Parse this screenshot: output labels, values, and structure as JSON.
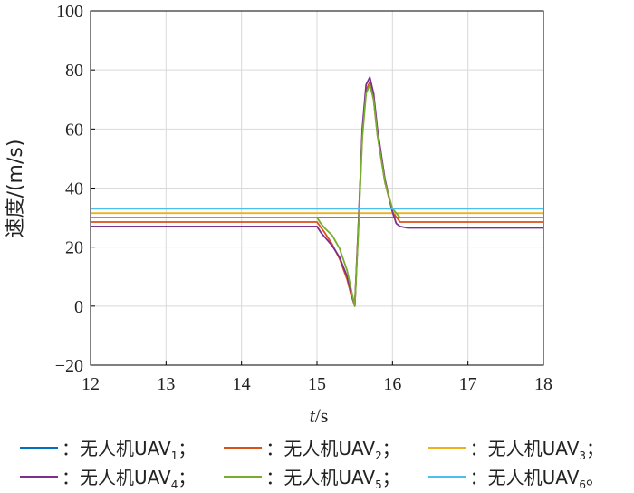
{
  "chart_data": {
    "type": "line",
    "xlabel_var": "t",
    "xlabel_unit": "/s",
    "ylabel": "速度/(m/s)",
    "xlim": [
      12,
      18
    ],
    "ylim": [
      -20,
      100
    ],
    "xticks": [
      "12",
      "13",
      "14",
      "15",
      "16",
      "17",
      "18"
    ],
    "yticks": [
      "−20",
      "0",
      "20",
      "40",
      "60",
      "80",
      "100"
    ],
    "grid": true,
    "legend_position": "bottom",
    "series": [
      {
        "name": "无人机UAV",
        "sub": "1",
        "suffix": "；",
        "color": "#0072BD",
        "x": [
          12,
          15.5,
          15.5,
          18
        ],
        "y": [
          30,
          30,
          30,
          30
        ]
      },
      {
        "name": "无人机UAV",
        "sub": "2",
        "suffix": "；",
        "color": "#D95319",
        "x": [
          12,
          15.0,
          15.1,
          15.2,
          15.3,
          15.4,
          15.45,
          15.5,
          15.55,
          15.6,
          15.65,
          15.7,
          15.75,
          15.8,
          15.9,
          16.0,
          16.1,
          16.2,
          16.3,
          18
        ],
        "y": [
          28.5,
          28.5,
          25,
          21,
          16,
          9,
          4,
          0,
          28,
          58,
          73,
          76,
          70,
          58,
          42,
          32,
          28.5,
          28.5,
          28.5,
          28.5
        ]
      },
      {
        "name": "无人机UAV",
        "sub": "3",
        "suffix": "；",
        "color": "#EDB120",
        "x": [
          12,
          15.5,
          15.6,
          15.7,
          15.8,
          16.0,
          18
        ],
        "y": [
          31.5,
          31.5,
          31.5,
          31.5,
          31.5,
          31.5,
          31.5
        ]
      },
      {
        "name": "无人机UAV",
        "sub": "4",
        "suffix": "；",
        "color": "#7E2F8E",
        "x": [
          12,
          15.0,
          15.05,
          15.1,
          15.2,
          15.3,
          15.4,
          15.45,
          15.5,
          15.55,
          15.6,
          15.65,
          15.7,
          15.75,
          15.8,
          15.9,
          16.0,
          16.05,
          16.1,
          16.2,
          16.3,
          18
        ],
        "y": [
          27,
          27,
          25,
          23.5,
          20.5,
          16.5,
          10,
          5,
          0,
          28,
          60,
          75,
          77.5,
          72,
          60,
          43,
          32,
          28,
          27,
          26.5,
          26.5,
          26.5
        ]
      },
      {
        "name": "无人机UAV",
        "sub": "5",
        "suffix": "；",
        "color": "#77AC30",
        "x": [
          12,
          15.0,
          15.05,
          15.1,
          15.2,
          15.3,
          15.4,
          15.45,
          15.5,
          15.55,
          15.6,
          15.65,
          15.7,
          15.75,
          15.8,
          15.9,
          16.0,
          16.1,
          16.2,
          18
        ],
        "y": [
          30,
          30,
          28,
          26.5,
          24,
          19.5,
          12,
          6,
          0,
          26,
          57,
          72,
          75,
          70,
          58,
          42,
          33,
          30,
          30,
          30
        ]
      },
      {
        "name": "无人机UAV",
        "sub": "6",
        "suffix": "。",
        "color": "#4DBEEE",
        "x": [
          12,
          18
        ],
        "y": [
          33,
          33
        ]
      }
    ]
  }
}
